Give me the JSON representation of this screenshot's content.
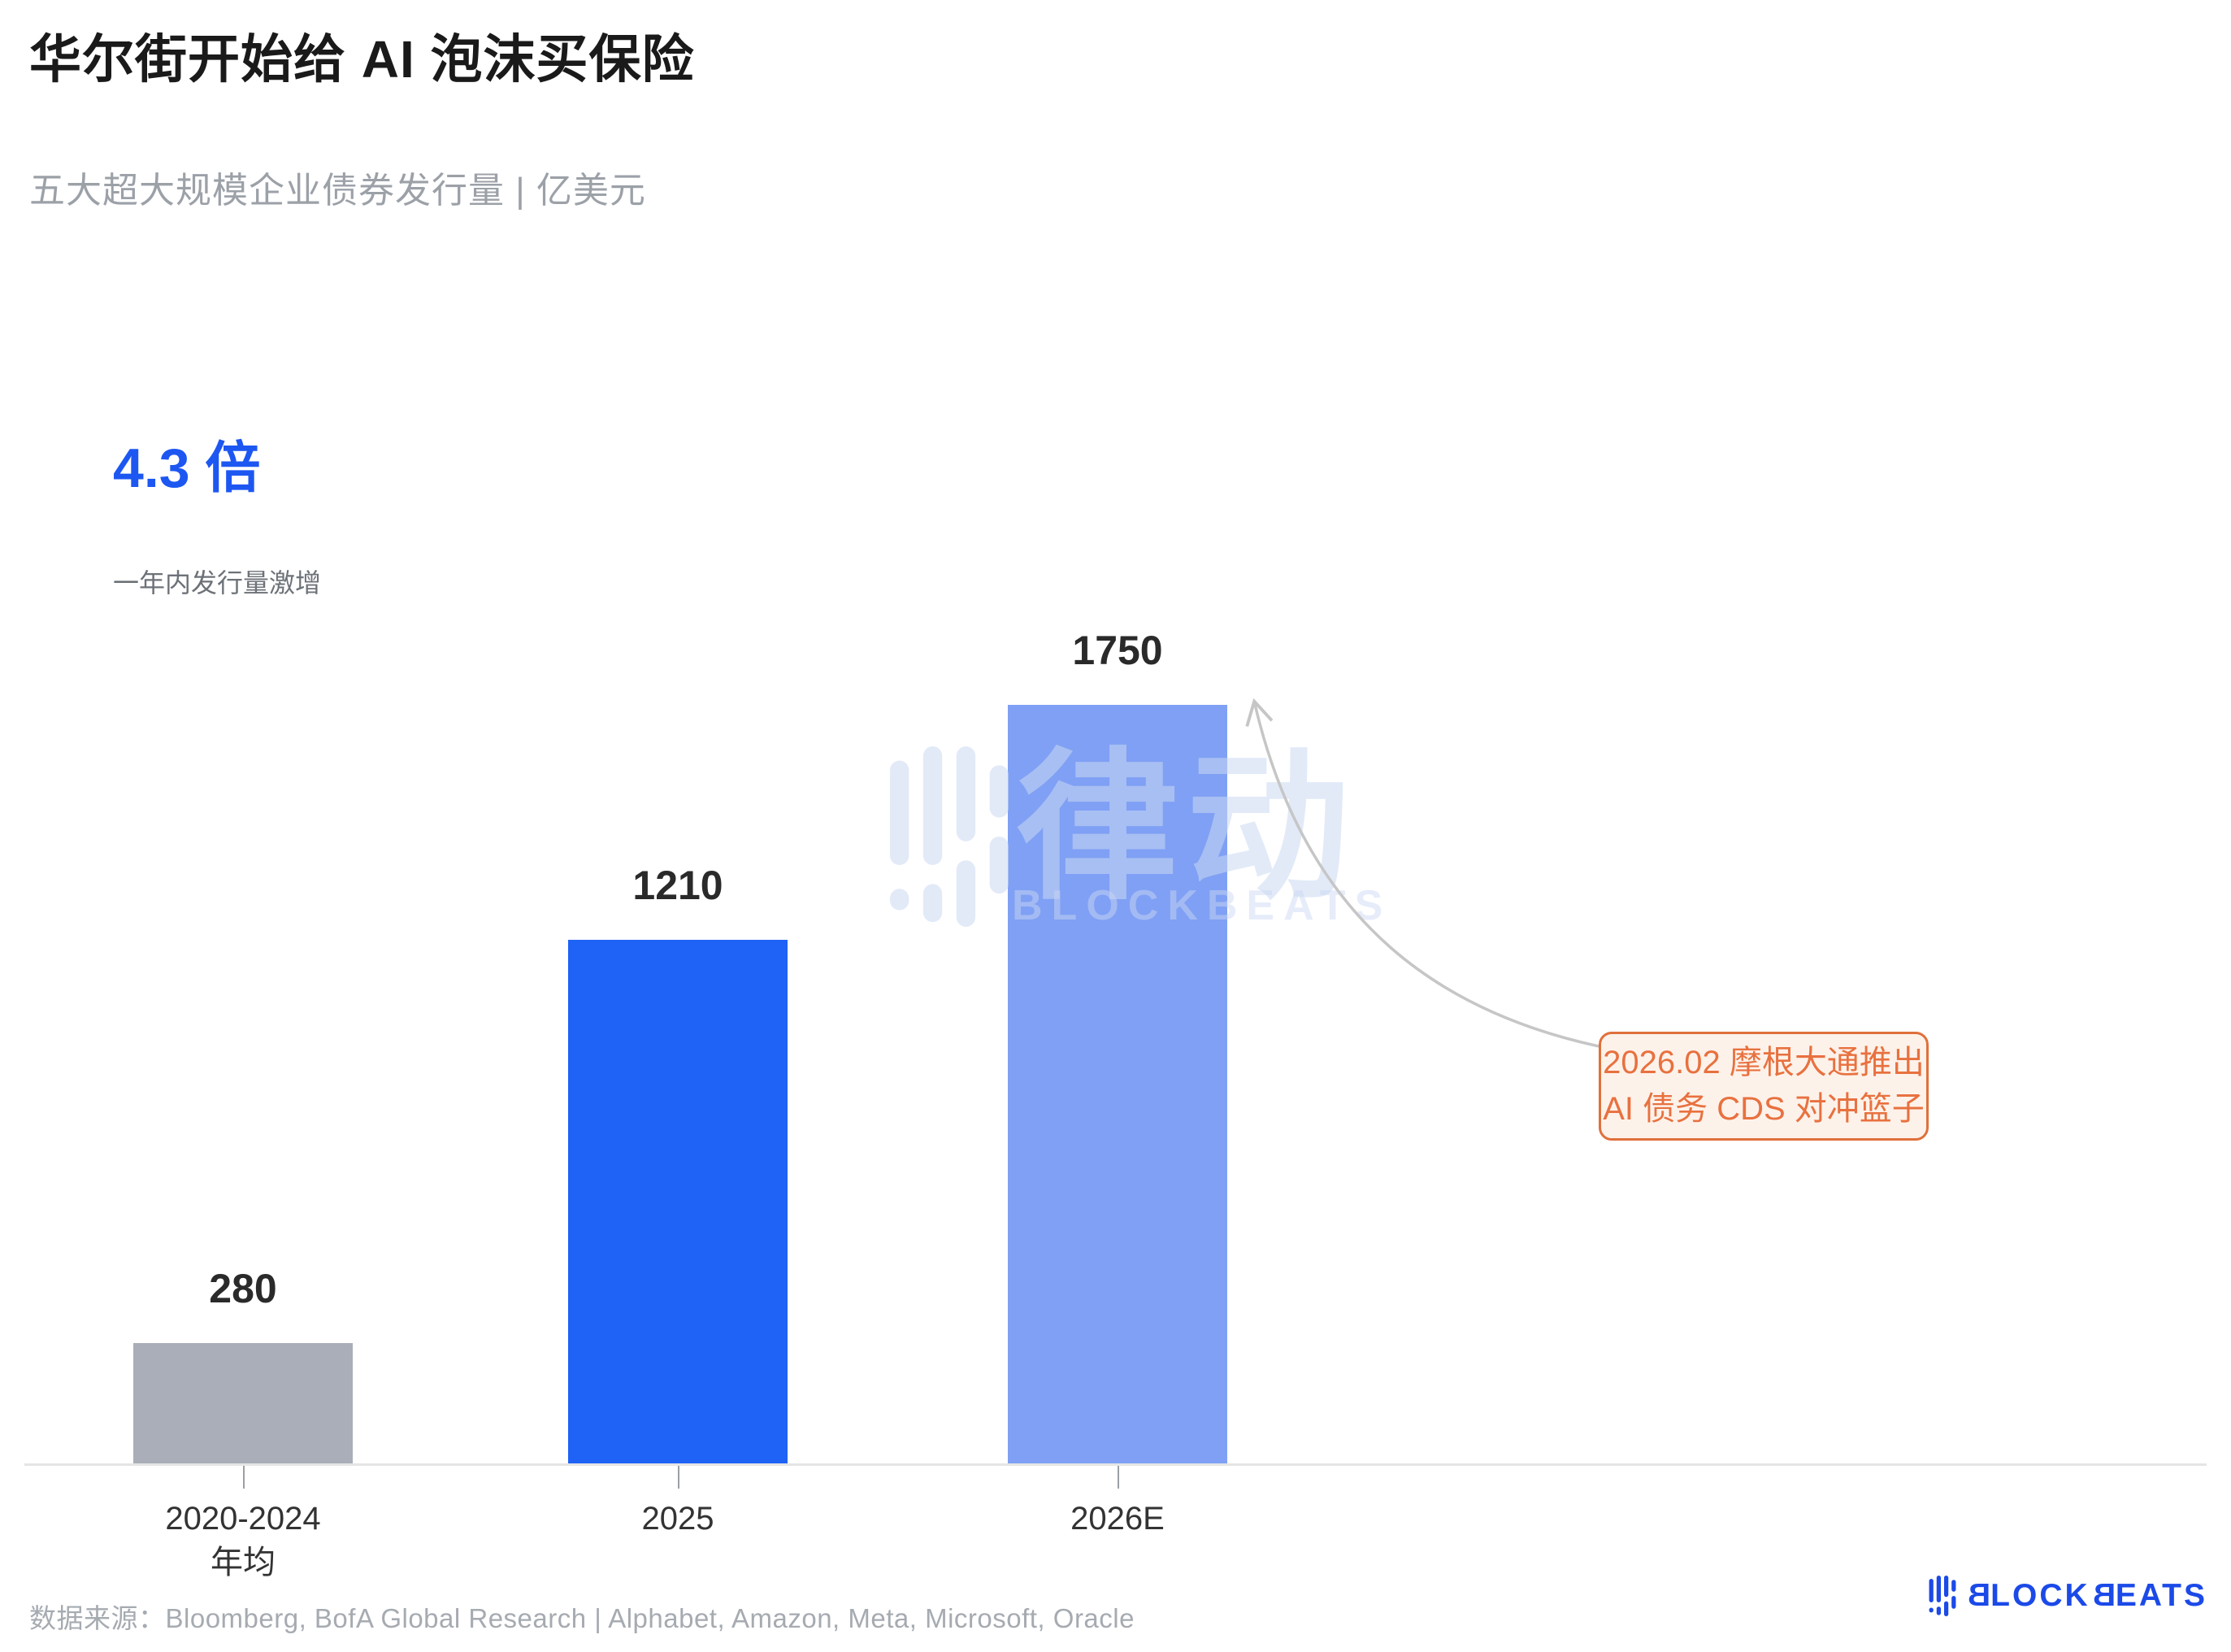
{
  "title": "华尔街开始给 AI 泡沫买保险",
  "subtitle": "五大超大规模企业债券发行量 | 亿美元",
  "highlight": {
    "value": "4.3 倍",
    "caption": "一年内发行量激增"
  },
  "chart_data": {
    "type": "bar",
    "title": "五大超大规模企业债券发行量",
    "unit": "亿美元",
    "categories": [
      "2020-2024 年均",
      "2025",
      "2026E"
    ],
    "values": [
      280,
      1210,
      1750
    ],
    "x_tick_lines": [
      [
        "2020-2024",
        "年均"
      ],
      [
        "2025"
      ],
      [
        "2026E"
      ]
    ],
    "bar_colors": [
      "#a9aeb8",
      "#1e62f6",
      "#7fa0f4"
    ],
    "value_label_color": "#2a2a2a",
    "annotation": "2026.02 摩根大通推出 AI 债务 CDS 对冲篮子",
    "annotation_color": "#e8713f",
    "highlight_multiple": "4.3 倍",
    "ylim": [
      0,
      1750
    ],
    "grid": false,
    "legend": false
  },
  "annotation": {
    "line1": "2026.02 摩根大通推出",
    "line2": "AI 债务 CDS 对冲篮子"
  },
  "watermark": {
    "cn": "律动",
    "en": "BLOCKBEATS"
  },
  "footer": {
    "source_label": "数据来源：",
    "sources": "Bloomberg, BofA Global Research | Alphabet, Amazon, Meta, Microsoft, Oracle",
    "logo_segments": [
      "B",
      "LOCK",
      "B",
      "EATS"
    ]
  },
  "colors": {
    "highlight_blue": "#1d57f2",
    "bar_gray": "#a9aeb8",
    "bar_blue": "#1e62f6",
    "bar_light_blue": "#7fa0f4",
    "annotation_orange": "#e8713f",
    "logo_blue": "#1b4ae8",
    "subtitle_gray": "#9ca1a8"
  }
}
